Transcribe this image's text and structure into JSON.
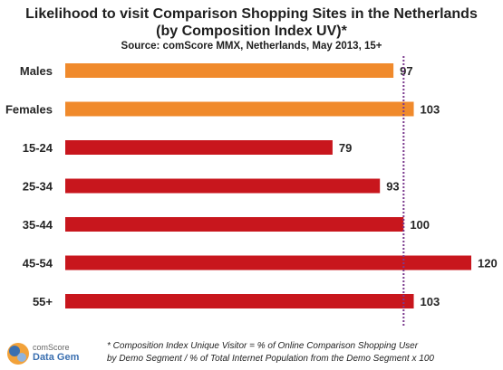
{
  "header": {
    "title_line1": "Likelihood to visit Comparison  Shopping Sites in the Netherlands",
    "title_line2": "(by Composition  Index UV)*",
    "source": "Source: comScore MMX, Netherlands, May 2013, 15+"
  },
  "chart_data": {
    "type": "bar",
    "orientation": "horizontal",
    "categories": [
      "Males",
      "Females",
      "15-24",
      "25-34",
      "35-44",
      "45-54",
      "55+"
    ],
    "values": [
      97,
      103,
      79,
      93,
      100,
      120,
      103
    ],
    "colors": [
      "#f08a2c",
      "#f08a2c",
      "#c8161d",
      "#c8161d",
      "#c8161d",
      "#c8161d",
      "#c8161d"
    ],
    "reference_line": 100,
    "reference_line_color": "#7b3a8e",
    "xlim": [
      0,
      120
    ],
    "grid": false,
    "legend": "none"
  },
  "logo": {
    "line1": "comScore",
    "line2": "Data Gem"
  },
  "footnote": {
    "line1": "* Composition Index Unique Visitor = % of Online Comparison Shopping User",
    "line2": "by Demo Segment / % of Total Internet Population from the Demo Segment x 100"
  }
}
